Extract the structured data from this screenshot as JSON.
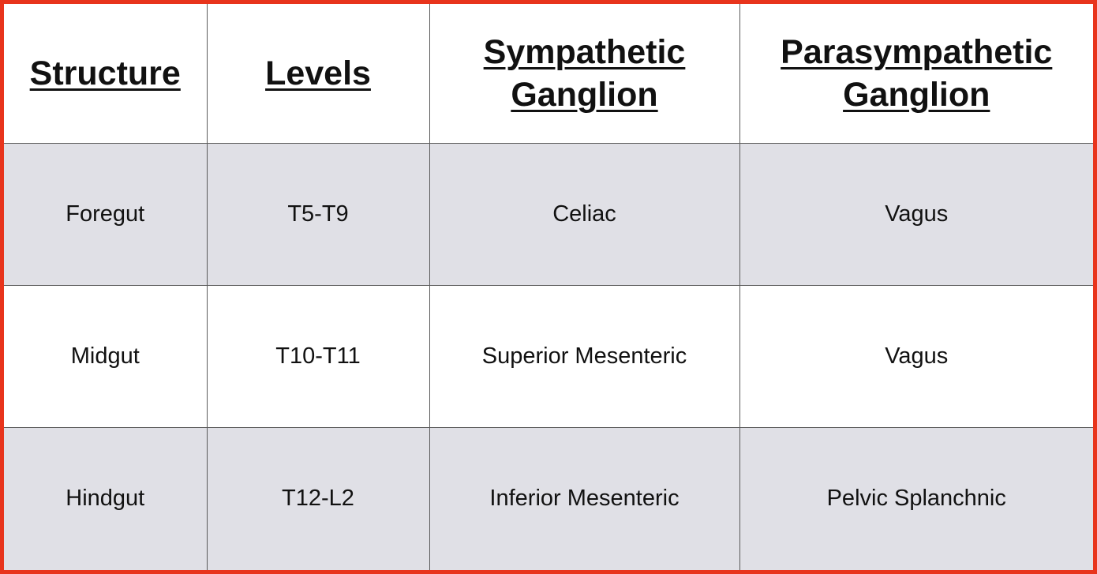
{
  "table": {
    "headers": [
      "Structure",
      "Levels",
      "Sympathetic Ganglion",
      "Parasympathetic Ganglion"
    ],
    "rows": [
      [
        "Foregut",
        "T5-T9",
        "Celiac",
        "Vagus"
      ],
      [
        "Midgut",
        "T10-T11",
        "Superior Mesenteric",
        "Vagus"
      ],
      [
        "Hindgut",
        "T12-L2",
        "Inferior Mesenteric",
        "Pelvic Splanchnic"
      ]
    ]
  },
  "colors": {
    "frame_border": "#e8341c",
    "shaded_row": "#e0e0e6",
    "plain_row": "#ffffff",
    "grid_line": "#5a5a5a"
  }
}
